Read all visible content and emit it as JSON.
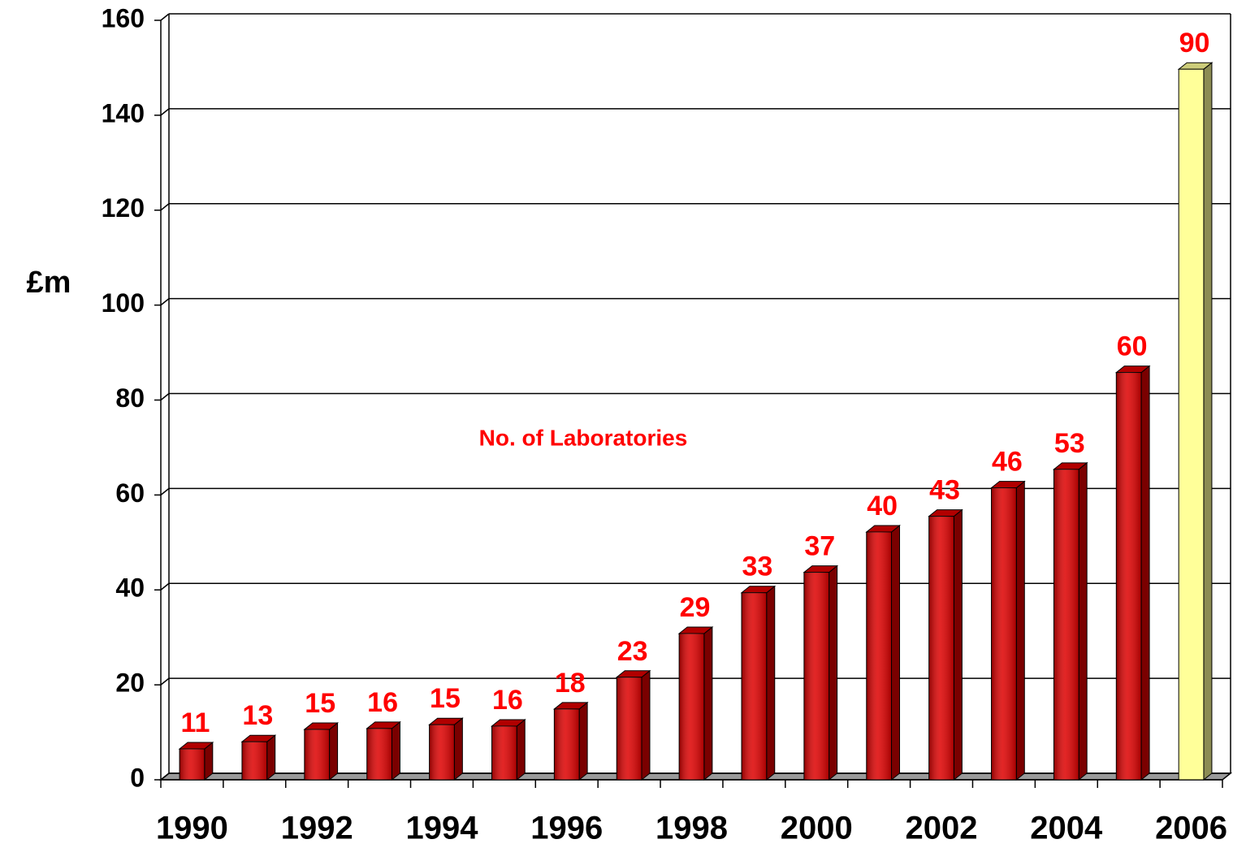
{
  "chart_data": {
    "type": "bar3d",
    "y_label": "£m",
    "annotation": "No. of Laboratories",
    "categories": [
      "1990",
      null,
      "1992",
      null,
      "1994",
      null,
      "1996",
      null,
      "1998",
      null,
      "2000",
      null,
      "2002",
      null,
      "2004",
      null,
      "2006"
    ],
    "values": [
      6.5,
      8,
      10.6,
      10.8,
      11.6,
      11.3,
      14.9,
      21.6,
      30.8,
      39.4,
      43.7,
      52.2,
      55.5,
      61.5,
      65.4,
      85.8,
      149.7
    ],
    "colors": [
      "#dd0000",
      "#dd0000",
      "#dd0000",
      "#dd0000",
      "#dd0000",
      "#dd0000",
      "#dd0000",
      "#dd0000",
      "#dd0000",
      "#dd0000",
      "#dd0000",
      "#dd0000",
      "#dd0000",
      "#dd0000",
      "#dd0000",
      "#dd0000",
      "#ffff99"
    ],
    "laboratories": {
      "name": "No. of Laboratories",
      "color": "#ff0000",
      "values": [
        11,
        13,
        15,
        16,
        15,
        16,
        18,
        23,
        29,
        33,
        37,
        40,
        43,
        46,
        53,
        60,
        90
      ]
    },
    "ylim": [
      0,
      160
    ],
    "yticks": [
      0,
      20,
      40,
      60,
      80,
      100,
      120,
      140,
      160
    ],
    "grid": true
  }
}
